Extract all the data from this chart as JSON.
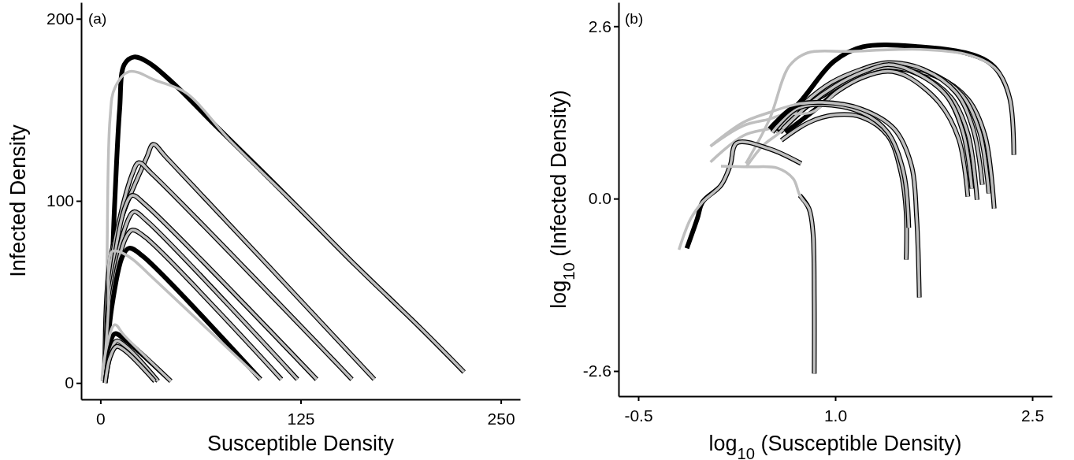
{
  "chart_data": [
    {
      "type": "line",
      "annotations": [
        "(a)"
      ],
      "xlabel": "Susceptible Density",
      "ylabel": "Infected Density",
      "xlim": [
        -12,
        262
      ],
      "ylim": [
        -9,
        209
      ],
      "xticks": [
        0,
        125,
        250
      ],
      "yticks": [
        0,
        100,
        200
      ],
      "series": [
        {
          "color": "#000000",
          "x": [
            2,
            6,
            9,
            12,
            15,
            21,
            30,
            45,
            70,
            100,
            125,
            160,
            200,
            227
          ],
          "values": [
            2,
            40,
            100,
            150,
            175,
            179,
            176,
            165,
            143,
            117,
            95,
            64,
            30,
            6
          ]
        },
        {
          "color": "#bfbfbf",
          "x": [
            1,
            3,
            4,
            6,
            9,
            18,
            35,
            54,
            80,
            125,
            160,
            200,
            227
          ],
          "values": [
            2,
            30,
            60,
            145,
            162,
            171,
            166,
            159,
            134,
            95,
            64,
            30,
            6
          ]
        },
        {
          "color": "#000000",
          "x": [
            3,
            7,
            29,
            33,
            41,
            171
          ],
          "values": [
            1,
            72,
            124,
            131,
            124,
            2
          ]
        },
        {
          "color": "#bfbfbf",
          "x": [
            3,
            7,
            29,
            33,
            41,
            171
          ],
          "values": [
            1,
            72,
            124,
            131,
            124,
            2
          ]
        },
        {
          "color": "#000000",
          "x": [
            3,
            7,
            20,
            24,
            32,
            157
          ],
          "values": [
            1,
            67,
            115,
            121,
            115,
            2
          ]
        },
        {
          "color": "#bfbfbf",
          "x": [
            3,
            7,
            20,
            24,
            32,
            157
          ],
          "values": [
            1,
            67,
            115,
            121,
            115,
            2
          ]
        },
        {
          "color": "#000000",
          "x": [
            3,
            7,
            16,
            20,
            28,
            135
          ],
          "values": [
            1,
            57,
            98,
            103,
            98,
            2
          ]
        },
        {
          "color": "#bfbfbf",
          "x": [
            3,
            7,
            16,
            20,
            28,
            135
          ],
          "values": [
            1,
            57,
            98,
            103,
            98,
            2
          ]
        },
        {
          "color": "#000000",
          "x": [
            3,
            7,
            17,
            21,
            29,
            123
          ],
          "values": [
            1,
            52,
            89,
            94,
            89,
            2
          ]
        },
        {
          "color": "#bfbfbf",
          "x": [
            3,
            7,
            17,
            21,
            29,
            123
          ],
          "values": [
            1,
            52,
            89,
            94,
            89,
            2
          ]
        },
        {
          "color": "#000000",
          "x": [
            3,
            7,
            16,
            20,
            28,
            113
          ],
          "values": [
            1,
            46,
            80,
            84,
            80,
            2
          ]
        },
        {
          "color": "#bfbfbf",
          "x": [
            3,
            7,
            16,
            20,
            28,
            113
          ],
          "values": [
            1,
            46,
            80,
            84,
            80,
            2
          ]
        },
        {
          "color": "#000000",
          "x": [
            3,
            7,
            14,
            18,
            26,
            100
          ],
          "values": [
            1,
            41,
            70,
            74,
            70,
            2
          ]
        },
        {
          "color": "#bfbfbf",
          "x": [
            2,
            5,
            7,
            12,
            20,
            30,
            100
          ],
          "values": [
            1,
            40,
            72,
            72,
            68,
            60,
            2
          ]
        },
        {
          "color": "#000000",
          "x": [
            2,
            5,
            9,
            15,
            44
          ],
          "values": [
            1,
            18,
            27,
            24,
            1
          ]
        },
        {
          "color": "#bfbfbf",
          "x": [
            1,
            4,
            9,
            15,
            44
          ],
          "values": [
            1,
            20,
            32,
            26,
            1
          ]
        },
        {
          "color": "#000000",
          "x": [
            3,
            6,
            10,
            16,
            36
          ],
          "values": [
            0,
            15,
            23,
            20,
            1
          ]
        },
        {
          "color": "#bfbfbf",
          "x": [
            3,
            6,
            10,
            16,
            36
          ],
          "values": [
            0,
            15,
            23,
            20,
            1
          ]
        },
        {
          "color": "#000000",
          "x": [
            3,
            6,
            10,
            15,
            34
          ],
          "values": [
            0,
            14,
            20,
            18,
            1
          ]
        },
        {
          "color": "#bfbfbf",
          "x": [
            3,
            6,
            10,
            15,
            34
          ],
          "values": [
            0,
            14,
            20,
            18,
            1
          ]
        }
      ]
    },
    {
      "type": "line",
      "annotations": [
        "(b)"
      ],
      "xlabel": "log$_{10}$ (Susceptible Density)",
      "ylabel": "log$_{10}$ (Infected Density)",
      "xlim": [
        -0.65,
        2.65
      ],
      "ylim": [
        -2.98,
        2.96
      ],
      "xticks": [
        -0.5,
        {
          "value": 1,
          "label": "1.0"
        },
        2.5
      ],
      "yticks": [
        -2.6,
        {
          "value": 0,
          "label": "0.0"
        },
        2.6
      ],
      "series": [
        {
          "color": "#000000",
          "x": [
            0.54,
            0.75,
            0.99,
            1.21,
            1.65,
            1.99,
            2.16,
            2.25,
            2.33,
            2.36
          ],
          "values": [
            1.05,
            1.5,
            2.07,
            2.29,
            2.29,
            2.2,
            2.07,
            1.89,
            1.5,
            0.66
          ]
        },
        {
          "color": "#bfbfbf",
          "x": [
            0.32,
            0.5,
            0.65,
            0.79,
            1.1,
            1.65,
            1.99,
            2.16,
            2.25,
            2.33,
            2.36
          ],
          "values": [
            0.53,
            1.2,
            2.0,
            2.2,
            2.22,
            2.25,
            2.18,
            2.05,
            1.89,
            1.5,
            0.66
          ]
        },
        {
          "color": "#000000",
          "x": [
            0.55,
            0.75,
            0.95,
            1.2,
            1.4,
            1.76,
            2.01,
            2.14,
            2.21
          ],
          "values": [
            1.0,
            1.35,
            1.6,
            1.85,
            1.95,
            1.85,
            1.5,
            0.95,
            -0.15
          ]
        },
        {
          "color": "#bfbfbf",
          "x": [
            0.55,
            0.75,
            0.95,
            1.2,
            1.4,
            1.76,
            2.01,
            2.14,
            2.21
          ],
          "values": [
            1.0,
            1.35,
            1.6,
            1.85,
            1.95,
            1.85,
            1.5,
            0.95,
            -0.15
          ]
        },
        {
          "color": "#000000",
          "x": [
            0.56,
            0.76,
            0.96,
            1.2,
            1.4,
            1.72,
            1.97,
            2.1,
            2.17
          ],
          "values": [
            1.02,
            1.4,
            1.68,
            1.9,
            2.0,
            1.9,
            1.55,
            1.0,
            0.08
          ]
        },
        {
          "color": "#bfbfbf",
          "x": [
            0.05,
            0.3,
            0.56,
            0.76,
            0.96,
            1.2,
            1.4,
            1.72,
            1.97,
            2.1,
            2.17
          ],
          "values": [
            0.55,
            0.95,
            1.1,
            1.4,
            1.68,
            1.9,
            2.0,
            1.9,
            1.55,
            1.0,
            0.08
          ]
        },
        {
          "color": "#000000",
          "x": [
            0.57,
            0.77,
            0.97,
            1.2,
            1.4,
            1.67,
            1.92,
            2.05,
            2.12
          ],
          "values": [
            1.04,
            1.45,
            1.75,
            1.95,
            2.05,
            1.95,
            1.6,
            1.05,
            0.21
          ]
        },
        {
          "color": "#bfbfbf",
          "x": [
            0.57,
            0.77,
            0.97,
            1.2,
            1.4,
            1.67,
            1.92,
            2.05,
            2.12
          ],
          "values": [
            1.04,
            1.45,
            1.75,
            1.95,
            2.05,
            1.95,
            1.6,
            1.05,
            0.21
          ]
        },
        {
          "color": "#000000",
          "x": [
            0.58,
            0.78,
            0.98,
            1.2,
            1.4,
            1.63,
            1.88,
            2.01,
            2.08
          ],
          "values": [
            1.0,
            1.38,
            1.65,
            1.88,
            1.98,
            1.88,
            1.53,
            0.98,
            -0.02
          ]
        },
        {
          "color": "#bfbfbf",
          "x": [
            0.32,
            0.45,
            0.58,
            0.78,
            0.98,
            1.2,
            1.4,
            1.63,
            1.88,
            2.01,
            2.08
          ],
          "values": [
            0.47,
            0.8,
            1.0,
            1.38,
            1.65,
            1.88,
            1.98,
            1.88,
            1.53,
            0.98,
            -0.02
          ]
        },
        {
          "color": "#000000",
          "x": [
            0.6,
            0.8,
            1.0,
            1.2,
            1.4,
            1.59,
            1.84,
            1.97,
            2.04
          ],
          "values": [
            1.05,
            1.42,
            1.7,
            1.9,
            2.02,
            1.92,
            1.57,
            1.02,
            0.15
          ]
        },
        {
          "color": "#bfbfbf",
          "x": [
            0.6,
            0.8,
            1.0,
            1.2,
            1.4,
            1.59,
            1.84,
            1.97,
            2.04
          ],
          "values": [
            1.05,
            1.42,
            1.7,
            1.9,
            2.02,
            1.92,
            1.57,
            1.02,
            0.15
          ]
        },
        {
          "color": "#000000",
          "x": [
            0.62,
            0.82,
            1.02,
            1.2,
            1.4,
            1.54,
            1.79,
            1.94,
            2.01
          ],
          "values": [
            1.0,
            1.3,
            1.62,
            1.82,
            1.92,
            1.85,
            1.45,
            0.9,
            0.03
          ]
        },
        {
          "color": "#bfbfbf",
          "x": [
            0.05,
            0.3,
            0.5,
            0.62,
            0.82,
            1.02,
            1.2,
            1.4,
            1.54,
            1.79,
            1.94,
            2.01
          ],
          "values": [
            0.79,
            1.1,
            1.2,
            1.28,
            1.3,
            1.62,
            1.82,
            1.92,
            1.85,
            1.45,
            0.9,
            0.03
          ]
        },
        {
          "color": "#000000",
          "x": [
            0.59,
            0.8,
            0.99,
            1.2,
            1.4,
            1.5,
            1.54,
            1.54
          ],
          "values": [
            0.88,
            1.15,
            1.26,
            1.23,
            0.95,
            0.4,
            -0.2,
            -0.92
          ]
        },
        {
          "color": "#bfbfbf",
          "x": [
            0.59,
            0.8,
            0.99,
            1.2,
            1.4,
            1.5,
            1.54,
            1.54
          ],
          "values": [
            0.88,
            1.15,
            1.26,
            1.23,
            0.95,
            0.4,
            -0.2,
            -0.92
          ]
        },
        {
          "color": "#000000",
          "x": [
            0.52,
            0.7,
            0.9,
            1.2,
            1.4,
            1.52,
            1.56
          ],
          "values": [
            1.0,
            1.35,
            1.42,
            1.3,
            1.0,
            0.4,
            -0.44
          ]
        },
        {
          "color": "#bfbfbf",
          "x": [
            0.52,
            0.7,
            0.9,
            1.2,
            1.4,
            1.52,
            1.56
          ],
          "values": [
            1.0,
            1.35,
            1.42,
            1.3,
            1.0,
            0.4,
            -0.44
          ]
        },
        {
          "color": "#000000",
          "x": [
            0.5,
            0.7,
            0.9,
            1.2,
            1.45,
            1.58,
            1.62,
            1.64
          ],
          "values": [
            1.05,
            1.4,
            1.45,
            1.35,
            1.05,
            0.5,
            -0.3,
            -1.49
          ]
        },
        {
          "color": "#bfbfbf",
          "x": [
            0.05,
            0.3,
            0.5,
            0.7,
            0.9,
            1.2,
            1.45,
            1.58,
            1.62,
            1.64
          ],
          "values": [
            0.79,
            1.15,
            1.3,
            1.42,
            1.45,
            1.35,
            1.05,
            0.5,
            -0.3,
            -1.49
          ]
        },
        {
          "color": "#000000",
          "x": [
            -0.13,
            -0.05,
            -0.01,
            0.13,
            0.2,
            0.25,
            0.5,
            0.74
          ],
          "values": [
            -0.75,
            -0.3,
            -0.05,
            0.2,
            0.5,
            0.84,
            0.75,
            0.53
          ]
        },
        {
          "color": "#bfbfbf",
          "x": [
            -0.19,
            -0.1,
            -0.01,
            0.13,
            0.2,
            0.25,
            0.5,
            0.74
          ],
          "values": [
            -0.77,
            -0.3,
            -0.05,
            0.2,
            0.5,
            0.84,
            0.75,
            0.53
          ]
        },
        {
          "color": "#000000",
          "x": [
            0.73,
            0.8,
            0.83,
            0.84,
            0.84
          ],
          "values": [
            0.05,
            -0.15,
            -0.5,
            -1.5,
            -2.64
          ]
        },
        {
          "color": "#bfbfbf",
          "x": [
            0.13,
            0.35,
            0.56,
            0.68,
            0.73,
            0.8,
            0.83,
            0.84,
            0.84
          ],
          "values": [
            0.49,
            0.48,
            0.46,
            0.3,
            0.05,
            -0.15,
            -0.5,
            -1.5,
            -2.64
          ]
        }
      ]
    }
  ]
}
